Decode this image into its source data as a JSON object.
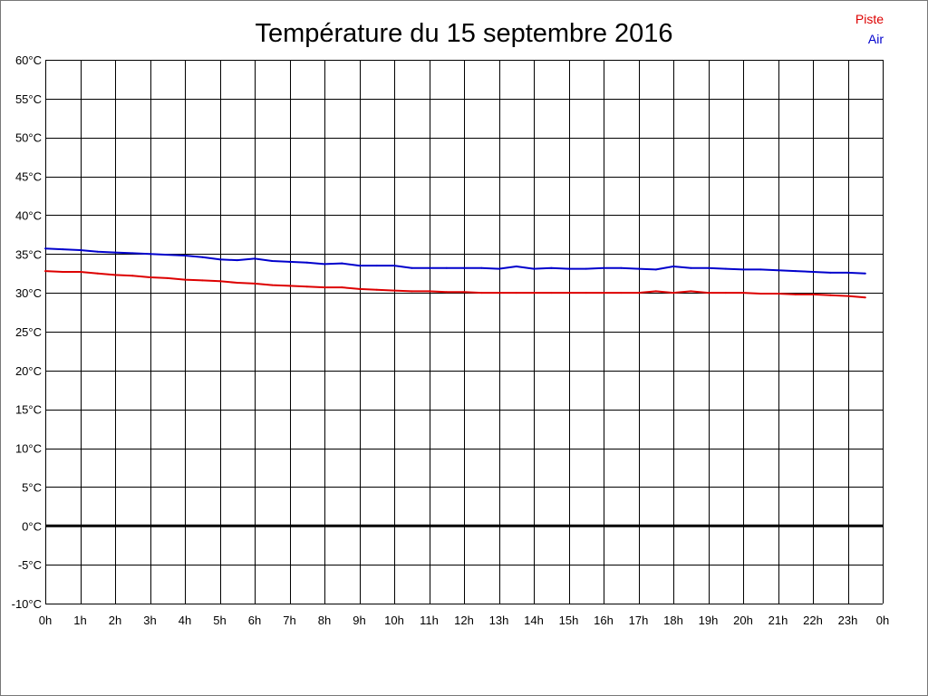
{
  "chart_data": {
    "type": "line",
    "title": "Température du 15 septembre 2016",
    "xlim": [
      0,
      24
    ],
    "ylim": [
      -10,
      60
    ],
    "grid": true,
    "legend": "top-right",
    "xticks": [
      {
        "value": 0,
        "label": "0h"
      },
      {
        "value": 1,
        "label": "1h"
      },
      {
        "value": 2,
        "label": "2h"
      },
      {
        "value": 3,
        "label": "3h"
      },
      {
        "value": 4,
        "label": "4h"
      },
      {
        "value": 5,
        "label": "5h"
      },
      {
        "value": 6,
        "label": "6h"
      },
      {
        "value": 7,
        "label": "7h"
      },
      {
        "value": 8,
        "label": "8h"
      },
      {
        "value": 9,
        "label": "9h"
      },
      {
        "value": 10,
        "label": "10h"
      },
      {
        "value": 11,
        "label": "11h"
      },
      {
        "value": 12,
        "label": "12h"
      },
      {
        "value": 13,
        "label": "13h"
      },
      {
        "value": 14,
        "label": "14h"
      },
      {
        "value": 15,
        "label": "15h"
      },
      {
        "value": 16,
        "label": "16h"
      },
      {
        "value": 17,
        "label": "17h"
      },
      {
        "value": 18,
        "label": "18h"
      },
      {
        "value": 19,
        "label": "19h"
      },
      {
        "value": 20,
        "label": "20h"
      },
      {
        "value": 21,
        "label": "21h"
      },
      {
        "value": 22,
        "label": "22h"
      },
      {
        "value": 23,
        "label": "23h"
      },
      {
        "value": 24,
        "label": "0h"
      }
    ],
    "yticks": [
      {
        "value": -10,
        "label": "-10°C"
      },
      {
        "value": -5,
        "label": "-5°C"
      },
      {
        "value": 0,
        "label": "0°C"
      },
      {
        "value": 5,
        "label": "5°C"
      },
      {
        "value": 10,
        "label": "10°C"
      },
      {
        "value": 15,
        "label": "15°C"
      },
      {
        "value": 20,
        "label": "20°C"
      },
      {
        "value": 25,
        "label": "25°C"
      },
      {
        "value": 30,
        "label": "30°C"
      },
      {
        "value": 35,
        "label": "35°C"
      },
      {
        "value": 40,
        "label": "40°C"
      },
      {
        "value": 45,
        "label": "45°C"
      },
      {
        "value": 50,
        "label": "50°C"
      },
      {
        "value": 55,
        "label": "55°C"
      },
      {
        "value": 60,
        "label": "60°C"
      }
    ],
    "x": [
      0,
      0.5,
      1,
      1.5,
      2,
      2.5,
      3,
      3.5,
      4,
      4.5,
      5,
      5.5,
      6,
      6.5,
      7,
      7.5,
      8,
      8.5,
      9,
      9.5,
      10,
      10.5,
      11,
      11.5,
      12,
      12.5,
      13,
      13.5,
      14,
      14.5,
      15,
      15.5,
      16,
      16.5,
      17,
      17.5,
      18,
      18.5,
      19,
      19.5,
      20,
      20.5,
      21,
      21.5,
      22,
      22.5,
      23,
      23.5
    ],
    "series": [
      {
        "name": "Piste",
        "color": "#dd0000",
        "values": [
          32.8,
          32.7,
          32.7,
          32.5,
          32.3,
          32.2,
          32.0,
          31.9,
          31.7,
          31.6,
          31.5,
          31.3,
          31.2,
          31.0,
          30.9,
          30.8,
          30.7,
          30.7,
          30.5,
          30.4,
          30.3,
          30.2,
          30.2,
          30.1,
          30.1,
          30.0,
          30.0,
          30.0,
          30.0,
          30.0,
          30.0,
          30.0,
          30.0,
          30.0,
          30.0,
          30.2,
          30.0,
          30.2,
          30.0,
          30.0,
          30.0,
          29.9,
          29.9,
          29.8,
          29.8,
          29.7,
          29.6,
          29.4
        ]
      },
      {
        "name": "Air",
        "color": "#0000cc",
        "values": [
          35.7,
          35.6,
          35.5,
          35.3,
          35.2,
          35.1,
          35.0,
          34.9,
          34.8,
          34.6,
          34.3,
          34.2,
          34.4,
          34.1,
          34.0,
          33.9,
          33.7,
          33.8,
          33.5,
          33.5,
          33.5,
          33.2,
          33.2,
          33.2,
          33.2,
          33.2,
          33.1,
          33.4,
          33.1,
          33.2,
          33.1,
          33.1,
          33.2,
          33.2,
          33.1,
          33.0,
          33.4,
          33.2,
          33.2,
          33.1,
          33.0,
          33.0,
          32.9,
          32.8,
          32.7,
          32.6,
          32.6,
          32.5
        ]
      }
    ]
  }
}
